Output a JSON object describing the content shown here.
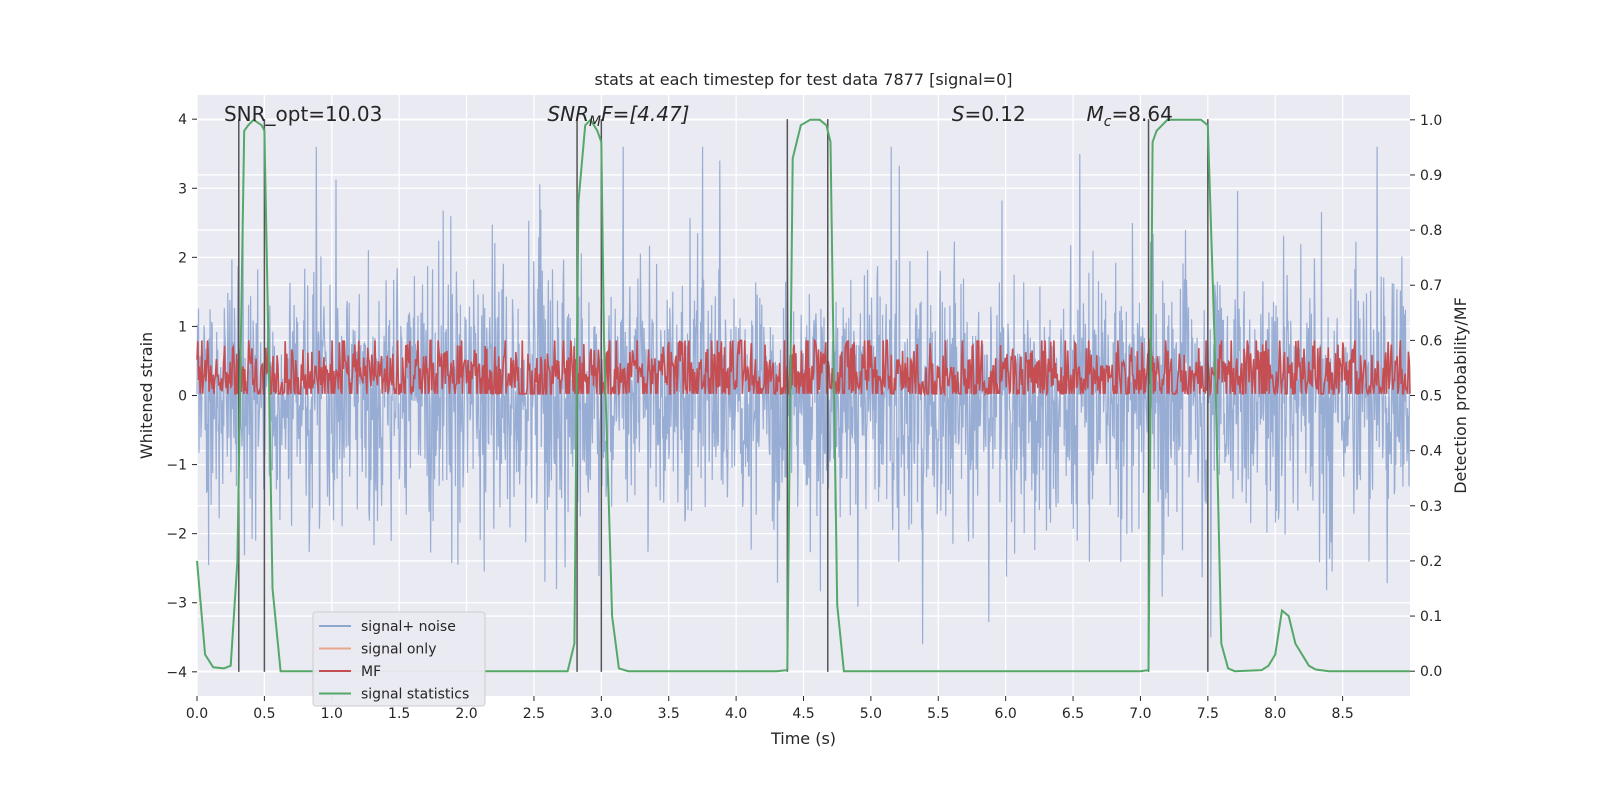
{
  "chart_data": {
    "type": "line",
    "title": "stats at each timestep for test data 7877 [signal=0]",
    "xlabel": "Time (s)",
    "ylabel": "Whitened strain",
    "y2label": "Detection probability/MF",
    "xlim": [
      0.0,
      9.0
    ],
    "ylim": [
      -4.35,
      4.35
    ],
    "y2lim": [
      -0.045,
      1.045
    ],
    "xticks": [
      0.0,
      0.5,
      1.0,
      1.5,
      2.0,
      2.5,
      3.0,
      3.5,
      4.0,
      4.5,
      5.0,
      5.5,
      6.0,
      6.5,
      7.0,
      7.5,
      8.0,
      8.5
    ],
    "xtick_labels": [
      "0.0",
      "0.5",
      "1.0",
      "1.5",
      "2.0",
      "2.5",
      "3.0",
      "3.5",
      "4.0",
      "4.5",
      "5.0",
      "5.5",
      "6.0",
      "6.5",
      "7.0",
      "7.5",
      "8.0",
      "8.5"
    ],
    "yticks": [
      -4,
      -3,
      -2,
      -1,
      0,
      1,
      2,
      3,
      4
    ],
    "ytick_labels": [
      "−4",
      "−3",
      "−2",
      "−1",
      "0",
      "1",
      "2",
      "3",
      "4"
    ],
    "y2ticks": [
      0.0,
      0.1,
      0.2,
      0.3,
      0.4,
      0.5,
      0.6,
      0.7,
      0.8,
      0.9,
      1.0
    ],
    "y2tick_labels": [
      "0.0",
      "0.1",
      "0.2",
      "0.3",
      "0.4",
      "0.5",
      "0.6",
      "0.7",
      "0.8",
      "0.9",
      "1.0"
    ],
    "grid": true,
    "annotations": [
      {
        "x": 0.2,
        "y_frac": 0.97,
        "text": "SNR_opt=10.03",
        "italic_prefix": ""
      },
      {
        "x": 2.6,
        "y_frac": 0.97,
        "text": "SNRₘF=[4.47]",
        "italic_prefix": "yes"
      },
      {
        "x": 5.6,
        "y_frac": 0.97,
        "text": "S=0.12",
        "italic_prefix": "yes"
      },
      {
        "x": 6.6,
        "y_frac": 0.97,
        "text": "Mᴄ=8.64",
        "italic_prefix": "yes"
      }
    ],
    "annotation_labels": {
      "snr_opt": "SNR_opt=10.03",
      "snr_mf_main": "SNR",
      "snr_mf_sub": "M",
      "snr_mf_rest": "F=[4.47]",
      "s_main": "S",
      "s_rest": "=0.12",
      "mc_main": "M",
      "mc_sub": "c",
      "mc_rest": "=8.64"
    },
    "vertical_lines": [
      0.31,
      0.5,
      2.82,
      3.0,
      4.38,
      4.68,
      7.06,
      7.5
    ],
    "series": [
      {
        "name": "signal+ noise",
        "color": "#8fa6d0",
        "axis": "left",
        "style": "noise",
        "t_range": [
          0.0,
          9.0
        ],
        "amplitude": 1.6,
        "peak_max": 3.6,
        "peak_min": -3.6
      },
      {
        "name": "signal only",
        "color": "#e8a78a",
        "axis": "left",
        "style": "flat",
        "value": 0.0
      },
      {
        "name": "MF",
        "color": "#c44e52",
        "axis": "right",
        "style": "noise",
        "t_range": [
          0.0,
          9.0
        ],
        "base": 0.535,
        "amplitude": 0.04
      },
      {
        "name": "signal statistics",
        "color": "#55a868",
        "axis": "right",
        "style": "line",
        "x": [
          0.0,
          0.06,
          0.12,
          0.2,
          0.25,
          0.3,
          0.35,
          0.38,
          0.42,
          0.48,
          0.5,
          0.53,
          0.56,
          0.62,
          0.7,
          1.0,
          1.5,
          2.0,
          2.5,
          2.75,
          2.8,
          2.83,
          2.88,
          2.92,
          2.97,
          3.0,
          3.02,
          3.08,
          3.13,
          3.2,
          3.5,
          4.0,
          4.3,
          4.38,
          4.42,
          4.48,
          4.55,
          4.62,
          4.67,
          4.7,
          4.75,
          4.8,
          5.0,
          6.0,
          7.0,
          7.06,
          7.09,
          7.12,
          7.2,
          7.3,
          7.45,
          7.5,
          7.55,
          7.6,
          7.65,
          7.7,
          7.9,
          7.95,
          8.0,
          8.05,
          8.1,
          8.15,
          8.25,
          8.3,
          8.4,
          8.6,
          9.0
        ],
        "y": [
          0.2,
          0.03,
          0.007,
          0.005,
          0.01,
          0.2,
          0.98,
          0.99,
          1.0,
          0.99,
          0.98,
          0.6,
          0.15,
          0.0,
          0.0,
          0.0,
          0.0,
          0.0,
          0.0,
          0.0,
          0.05,
          0.85,
          0.99,
          1.0,
          0.98,
          0.96,
          0.6,
          0.1,
          0.005,
          0.0,
          0.0,
          0.0,
          0.0,
          0.002,
          0.93,
          0.99,
          1.0,
          1.0,
          0.99,
          0.96,
          0.12,
          0.0,
          0.0,
          0.0,
          0.0,
          0.002,
          0.96,
          0.98,
          1.0,
          1.0,
          1.0,
          0.99,
          0.6,
          0.05,
          0.005,
          0.0,
          0.002,
          0.01,
          0.03,
          0.11,
          0.1,
          0.05,
          0.01,
          0.003,
          0.0,
          0.0,
          0.0
        ]
      }
    ],
    "legend": [
      "signal+ noise",
      "signal only",
      "MF",
      "signal statistics"
    ],
    "legend_position": "lower-left"
  }
}
